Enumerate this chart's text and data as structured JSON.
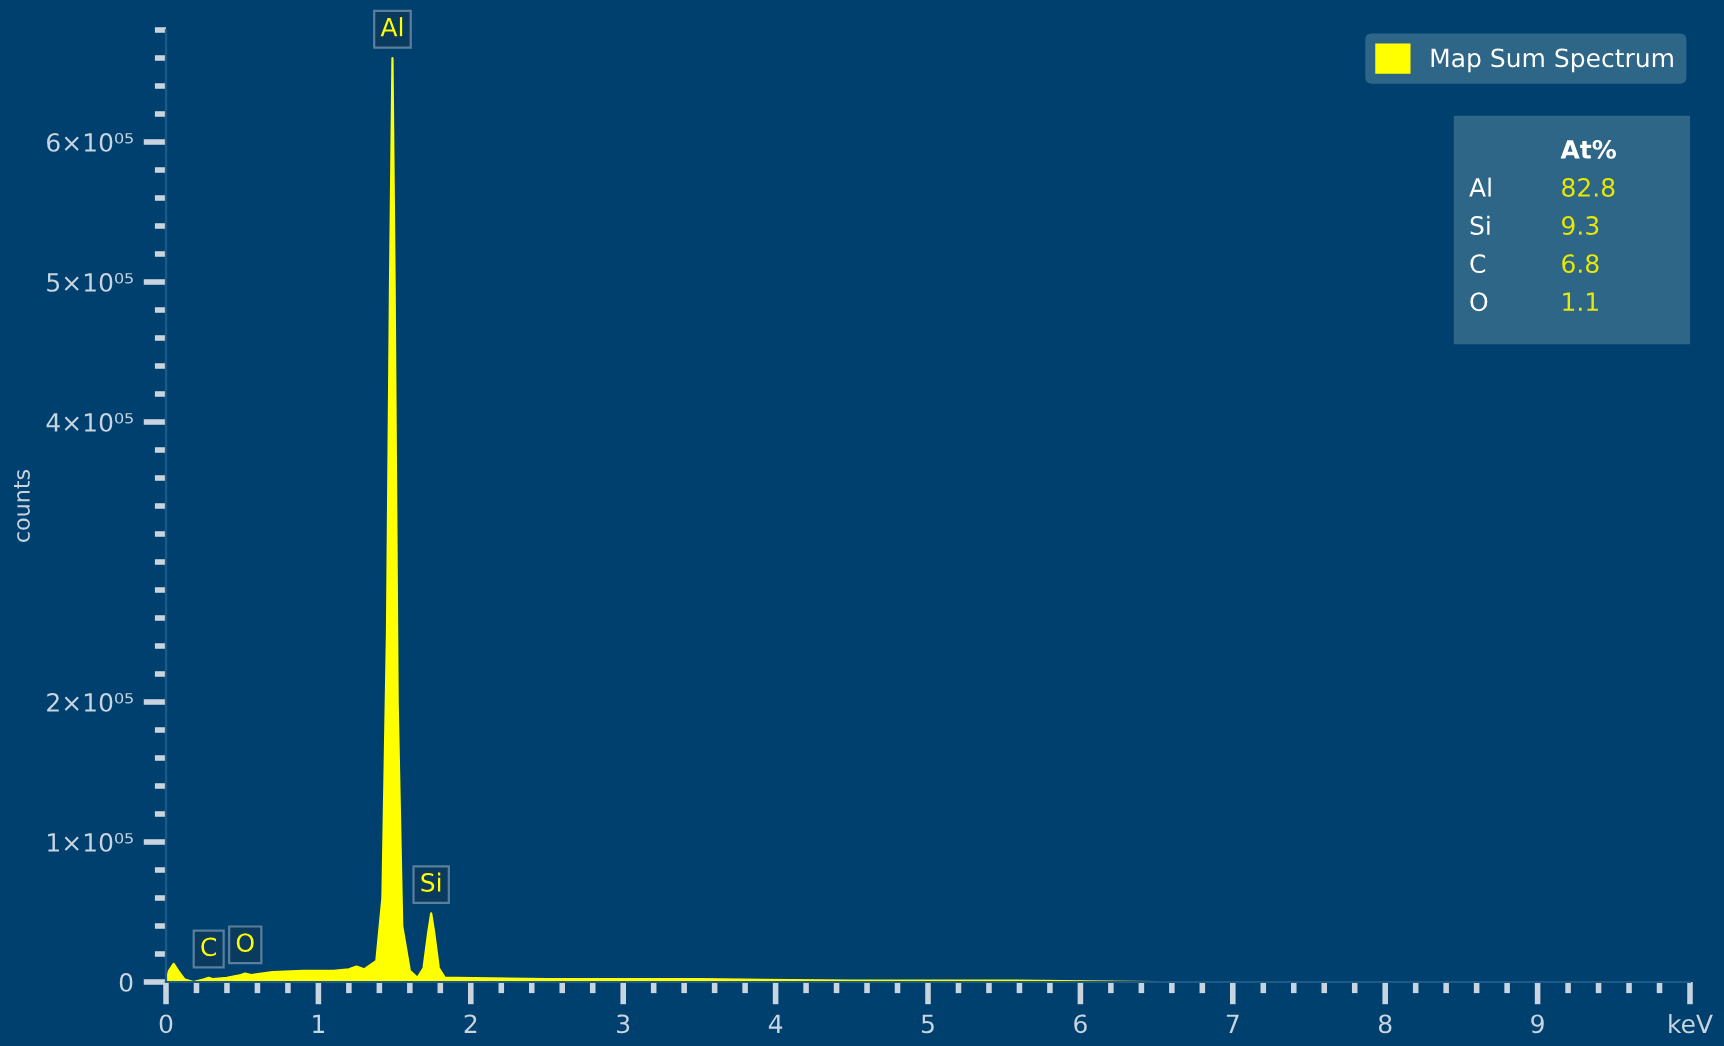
{
  "chart_data": {
    "type": "area",
    "ylabel": "counts",
    "xlim": [
      0,
      10
    ],
    "ylim": [
      0,
      680000
    ],
    "xticks": [
      0,
      1,
      2,
      3,
      4,
      5,
      6,
      7,
      8,
      9,
      {
        "value": 10,
        "label": "keV"
      },
      {
        "value": 0.2,
        "label": null
      },
      {
        "value": 0.4,
        "label": null
      },
      {
        "value": 0.6,
        "label": null
      },
      {
        "value": 0.8,
        "label": null
      },
      {
        "value": 1.2,
        "label": null
      },
      {
        "value": 1.4,
        "label": null
      },
      {
        "value": 1.6,
        "label": null
      },
      {
        "value": 1.8,
        "label": null
      },
      {
        "value": 2.2,
        "label": null
      },
      {
        "value": 2.4,
        "label": null
      },
      {
        "value": 2.6,
        "label": null
      },
      {
        "value": 2.8,
        "label": null
      },
      {
        "value": 3.2,
        "label": null
      },
      {
        "value": 3.4,
        "label": null
      },
      {
        "value": 3.6,
        "label": null
      },
      {
        "value": 3.8,
        "label": null
      },
      {
        "value": 4.2,
        "label": null
      },
      {
        "value": 4.4,
        "label": null
      },
      {
        "value": 4.6,
        "label": null
      },
      {
        "value": 4.8,
        "label": null
      },
      {
        "value": 5.2,
        "label": null
      },
      {
        "value": 5.4,
        "label": null
      },
      {
        "value": 5.6,
        "label": null
      },
      {
        "value": 5.8,
        "label": null
      },
      {
        "value": 6.2,
        "label": null
      },
      {
        "value": 6.4,
        "label": null
      },
      {
        "value": 6.6,
        "label": null
      },
      {
        "value": 6.8,
        "label": null
      },
      {
        "value": 7.2,
        "label": null
      },
      {
        "value": 7.4,
        "label": null
      },
      {
        "value": 7.6,
        "label": null
      },
      {
        "value": 7.8,
        "label": null
      },
      {
        "value": 8.2,
        "label": null
      },
      {
        "value": 8.4,
        "label": null
      },
      {
        "value": 8.6,
        "label": null
      },
      {
        "value": 8.8,
        "label": null
      },
      {
        "value": 9.2,
        "label": null
      },
      {
        "value": 9.4,
        "label": null
      },
      {
        "value": 9.6,
        "label": null
      },
      {
        "value": 9.8,
        "label": null
      }
    ],
    "yticks": [
      0,
      {
        "value": 100000,
        "label": "1×10⁰⁵"
      },
      {
        "value": 200000,
        "label": "2×10⁰⁵"
      },
      {
        "value": 300000,
        "label": null
      },
      {
        "value": 400000,
        "label": "4×10⁰⁵"
      },
      {
        "value": 500000,
        "label": "5×10⁰⁵"
      },
      {
        "value": 600000,
        "label": "6×10⁰⁵"
      },
      {
        "value": 20000,
        "label": null
      },
      {
        "value": 40000,
        "label": null
      },
      {
        "value": 60000,
        "label": null
      },
      {
        "value": 80000,
        "label": null
      },
      {
        "value": 120000,
        "label": null
      },
      {
        "value": 140000,
        "label": null
      },
      {
        "value": 160000,
        "label": null
      },
      {
        "value": 180000,
        "label": null
      },
      {
        "value": 220000,
        "label": null
      },
      {
        "value": 240000,
        "label": null
      },
      {
        "value": 260000,
        "label": null
      },
      {
        "value": 280000,
        "label": null
      },
      {
        "value": 320000,
        "label": null
      },
      {
        "value": 340000,
        "label": null
      },
      {
        "value": 360000,
        "label": null
      },
      {
        "value": 380000,
        "label": null
      },
      {
        "value": 420000,
        "label": null
      },
      {
        "value": 440000,
        "label": null
      },
      {
        "value": 460000,
        "label": null
      },
      {
        "value": 480000,
        "label": null
      },
      {
        "value": 520000,
        "label": null
      },
      {
        "value": 540000,
        "label": null
      },
      {
        "value": 560000,
        "label": null
      },
      {
        "value": 580000,
        "label": null
      },
      {
        "value": 620000,
        "label": null
      },
      {
        "value": 640000,
        "label": null
      },
      {
        "value": 660000,
        "label": null
      },
      {
        "value": 680000,
        "label": null
      }
    ],
    "grid": false,
    "legend": "top right",
    "series": [
      {
        "name": "Map Sum Spectrum",
        "color": "#ffff00",
        "x": [
          0,
          0.02,
          0.05,
          0.08,
          0.12,
          0.18,
          0.25,
          0.28,
          0.31,
          0.4,
          0.49,
          0.52,
          0.56,
          0.7,
          0.9,
          1.1,
          1.2,
          1.25,
          1.3,
          1.38,
          1.42,
          1.45,
          1.47,
          1.486,
          1.5,
          1.52,
          1.55,
          1.6,
          1.65,
          1.69,
          1.72,
          1.74,
          1.76,
          1.79,
          1.83,
          1.9,
          2.5,
          3.5,
          4.5,
          5.5,
          6.5,
          7.5
        ],
        "values": [
          0,
          8000,
          13000,
          8000,
          2000,
          0,
          2000,
          3000,
          2000,
          3000,
          5000,
          6000,
          5000,
          7000,
          8000,
          8000,
          9000,
          11000,
          9000,
          15000,
          60000,
          250000,
          500000,
          660000,
          500000,
          200000,
          40000,
          8000,
          3000,
          10000,
          35000,
          49000,
          35000,
          10000,
          3000,
          3000,
          2000,
          2000,
          1000,
          1000,
          0,
          0
        ]
      }
    ],
    "annotations": [
      {
        "text": "Al",
        "x": 1.486,
        "y": 660000
      },
      {
        "text": "Si",
        "x": 1.74,
        "y": 49000
      },
      {
        "text": "C",
        "x": 0.28,
        "y": 3000
      },
      {
        "text": "O",
        "x": 0.52,
        "y": 6000
      },
      "At%",
      "Al",
      "82.8",
      "Si",
      "9.3",
      "C",
      "6.8",
      "O",
      "1.1"
    ]
  }
}
